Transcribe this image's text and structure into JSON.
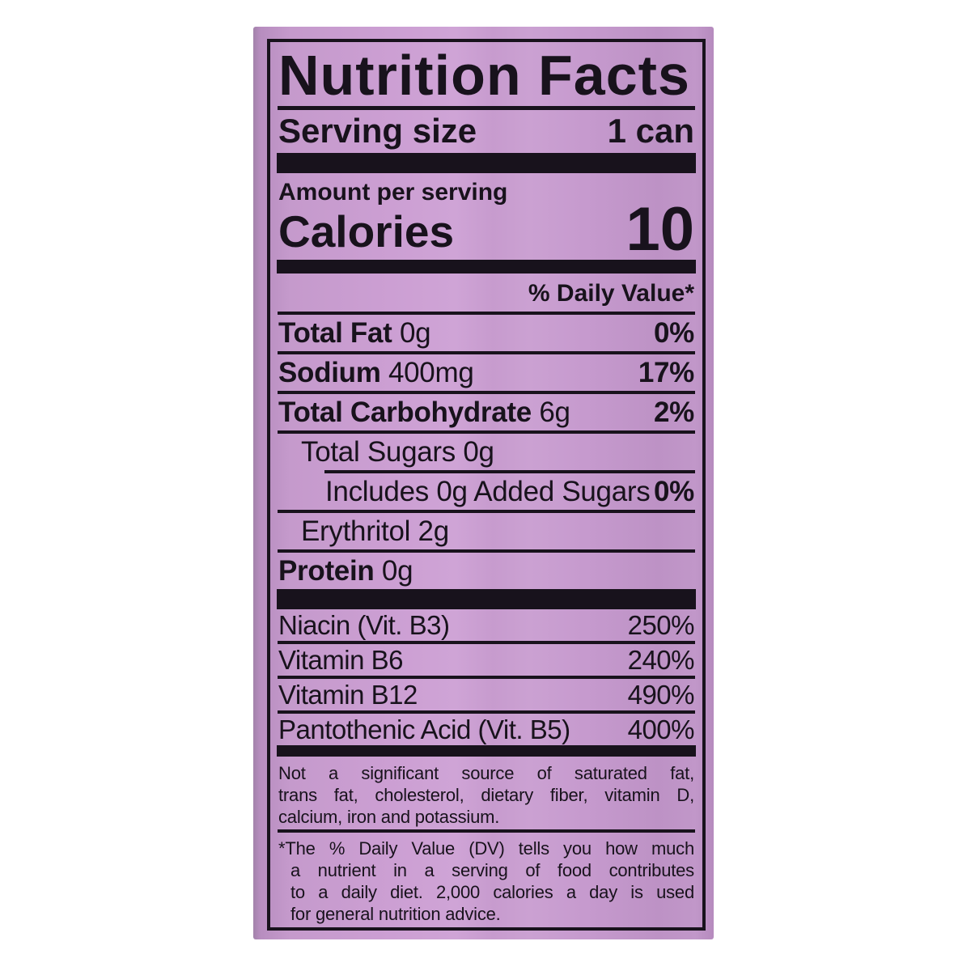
{
  "label": {
    "title": "Nutrition Facts",
    "serving": {
      "label": "Serving size",
      "value": "1 can"
    },
    "amount_per_serving": "Amount per serving",
    "calories": {
      "label": "Calories",
      "value": "10"
    },
    "daily_value_header": "% Daily Value*",
    "nutrient_rows": [
      {
        "name": "Total Fat",
        "amount": "0g",
        "dv": "0%"
      },
      {
        "name": "Sodium",
        "amount": "400mg",
        "dv": "17%"
      },
      {
        "name": "Total Carbohydrate",
        "amount": "6g",
        "dv": "2%"
      },
      {
        "name": "Total Sugars",
        "amount": "0g",
        "dv": ""
      },
      {
        "name": "Includes 0g Added Sugars",
        "amount": "",
        "dv": "0%"
      },
      {
        "name": "Erythritol",
        "amount": "2g",
        "dv": ""
      },
      {
        "name": "Protein",
        "amount": "0g",
        "dv": ""
      }
    ],
    "vitamin_rows": [
      {
        "name": "Niacin (Vit. B3)",
        "dv": "250%"
      },
      {
        "name": "Vitamin B6",
        "dv": "240%"
      },
      {
        "name": "Vitamin B12",
        "dv": "490%"
      },
      {
        "name": "Pantothenic Acid (Vit. B5)",
        "dv": "400%"
      }
    ],
    "footnote_sources": {
      "lines": [
        "Not a significant source of saturated fat,",
        "trans fat, cholesterol, dietary fiber, vitamin D,",
        "calcium, iron and potassium."
      ]
    },
    "footnote_dv": {
      "lines": [
        "*The % Daily Value (DV) tells you how much",
        "a nutrient in a serving of food contributes",
        "to a daily diet. 2,000 calories a day is used",
        "for general nutrition advice."
      ]
    },
    "colors": {
      "can_purple": "#c89bd0",
      "ink": "#18121c"
    }
  }
}
